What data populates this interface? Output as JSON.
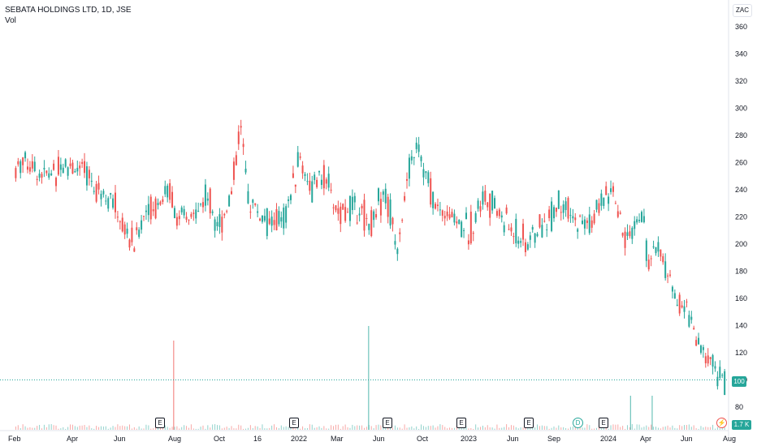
{
  "header": {
    "symbol_title": "SEBATA HOLDINGS LTD, 1D, JSE",
    "sub": "Vol",
    "currency": "ZAC"
  },
  "badges": {
    "last_price": "100",
    "volume": "1.7 K"
  },
  "events": {
    "earnings_label": "E",
    "dividend_label": "D",
    "flash_icon": "lightning-icon"
  },
  "colors": {
    "up": "#26a69a",
    "down": "#ef5350",
    "last_line": "#26a69a"
  },
  "chart_data": {
    "type": "candlestick",
    "title": "SEBATA HOLDINGS LTD, 1D, JSE",
    "ylim": [
      70,
      370
    ],
    "y_ticks": [
      80,
      100,
      120,
      140,
      160,
      180,
      200,
      220,
      240,
      260,
      280,
      300,
      320,
      340,
      360
    ],
    "x_tick_labels": [
      "Feb",
      "Apr",
      "Jun",
      "Aug",
      "Oct",
      "16",
      "2022",
      "Mar",
      "Jun",
      "Oct",
      "2023",
      "Jun",
      "Sep",
      "2024",
      "Apr",
      "Jun",
      "Aug"
    ],
    "last_price": 100,
    "grid": false,
    "price_path": [
      [
        2021.08,
        255
      ],
      [
        2021.12,
        265
      ],
      [
        2021.18,
        255
      ],
      [
        2021.25,
        250
      ],
      [
        2021.32,
        260
      ],
      [
        2021.4,
        255
      ],
      [
        2021.48,
        245
      ],
      [
        2021.56,
        235
      ],
      [
        2021.62,
        215
      ],
      [
        2021.68,
        200
      ],
      [
        2021.74,
        225
      ],
      [
        2021.8,
        230
      ],
      [
        2021.86,
        240
      ],
      [
        2021.92,
        215
      ],
      [
        2021.98,
        220
      ],
      [
        2022.05,
        235
      ],
      [
        2022.12,
        215
      ],
      [
        2022.18,
        240
      ],
      [
        2022.22,
        290
      ],
      [
        2022.26,
        235
      ],
      [
        2022.33,
        220
      ],
      [
        2022.38,
        215
      ],
      [
        2022.45,
        220
      ],
      [
        2022.52,
        265
      ],
      [
        2022.58,
        240
      ],
      [
        2022.65,
        250
      ],
      [
        2022.72,
        220
      ],
      [
        2022.8,
        230
      ],
      [
        2022.88,
        215
      ],
      [
        2022.95,
        240
      ],
      [
        2023.02,
        200
      ],
      [
        2023.08,
        255
      ],
      [
        2023.12,
        275
      ],
      [
        2023.16,
        250
      ],
      [
        2023.22,
        225
      ],
      [
        2023.3,
        220
      ],
      [
        2023.38,
        210
      ],
      [
        2023.45,
        235
      ],
      [
        2023.52,
        225
      ],
      [
        2023.6,
        210
      ],
      [
        2023.68,
        200
      ],
      [
        2023.76,
        215
      ],
      [
        2023.84,
        230
      ],
      [
        2023.92,
        215
      ],
      [
        2024.0,
        215
      ],
      [
        2024.1,
        240
      ],
      [
        2024.18,
        200
      ],
      [
        2024.26,
        225
      ],
      [
        2024.3,
        180
      ],
      [
        2024.34,
        200
      ],
      [
        2024.4,
        175
      ],
      [
        2024.45,
        155
      ],
      [
        2024.5,
        150
      ],
      [
        2024.55,
        125
      ],
      [
        2024.6,
        115
      ],
      [
        2024.64,
        110
      ],
      [
        2024.68,
        100
      ]
    ],
    "volume_spikes": [
      {
        "x": 2021.88,
        "value": "high"
      },
      {
        "x": 2022.87,
        "value": "highest"
      },
      {
        "x": 2024.2,
        "value": "medium"
      },
      {
        "x": 2024.31,
        "value": "medium"
      }
    ]
  }
}
